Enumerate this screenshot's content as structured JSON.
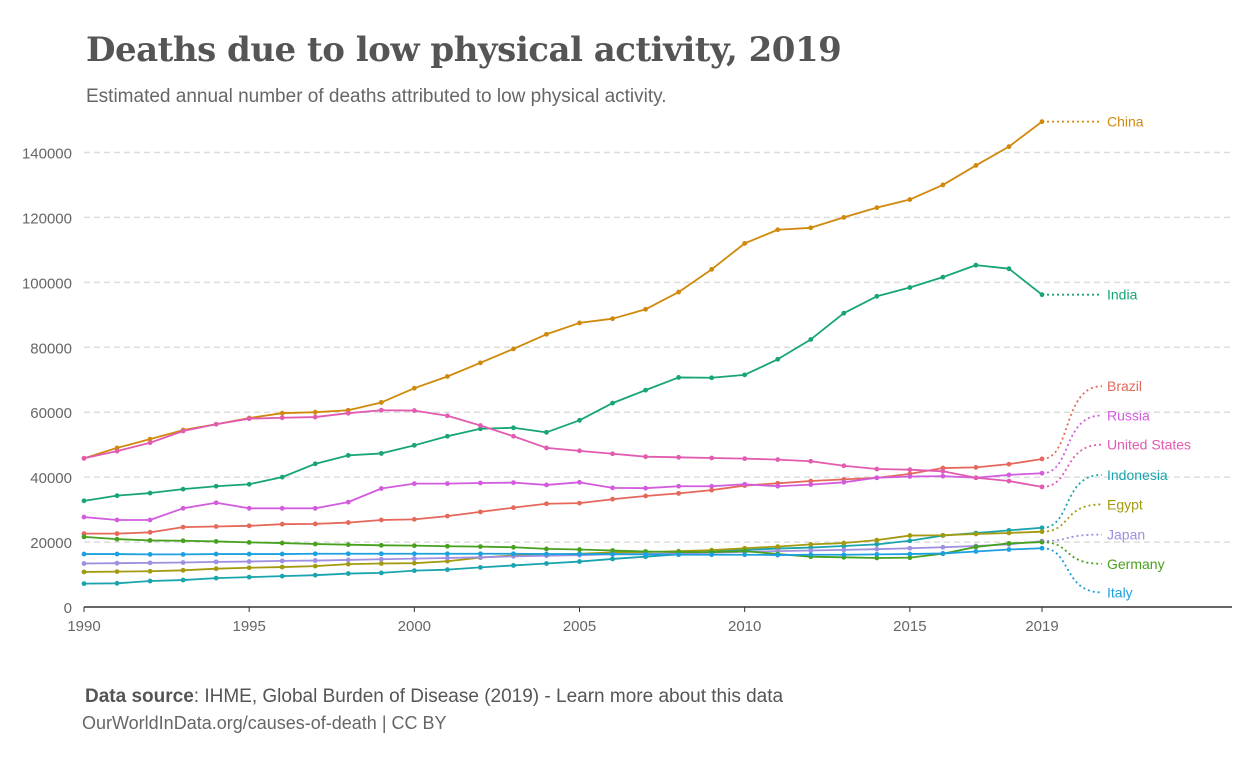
{
  "title": "Deaths due to low physical activity, 2019",
  "subtitle": "Estimated annual number of deaths attributed to low physical activity.",
  "footer": {
    "source_label": "Data source",
    "source_text": ": IHME, Global Burden of Disease (2019) - ",
    "source_link": "Learn more about this data",
    "url_text": "OurWorldInData.org/causes-of-death | CC BY"
  },
  "chart_data": {
    "type": "line",
    "title": "Deaths due to low physical activity, 2019",
    "subtitle": "Estimated annual number of deaths attributed to low physical activity.",
    "xlim": [
      1990,
      2019
    ],
    "ylim": [
      0,
      150000
    ],
    "x_ticks": [
      1990,
      1995,
      2000,
      2005,
      2010,
      2015,
      2019
    ],
    "y_ticks": [
      0,
      20000,
      40000,
      60000,
      80000,
      100000,
      120000,
      140000
    ],
    "grid": "horizontal dashed",
    "legend": "labels at end of lines (right)",
    "x": [
      1990,
      1991,
      1992,
      1993,
      1994,
      1995,
      1996,
      1997,
      1998,
      1999,
      2000,
      2001,
      2002,
      2003,
      2004,
      2005,
      2006,
      2007,
      2008,
      2009,
      2010,
      2011,
      2012,
      2013,
      2014,
      2015,
      2016,
      2017,
      2018,
      2019
    ],
    "series": [
      {
        "name": "China",
        "color": "#d0890a",
        "values": [
          45800,
          49000,
          51700,
          54500,
          56300,
          58200,
          59700,
          60000,
          60600,
          63000,
          67400,
          71000,
          75200,
          79500,
          84000,
          87500,
          88800,
          91700,
          97000,
          104000,
          112000,
          116200,
          116800,
          120000,
          123000,
          125500,
          130000,
          136000,
          141800,
          149500
        ]
      },
      {
        "name": "India",
        "color": "#17a577",
        "values": [
          32700,
          34300,
          35100,
          36300,
          37200,
          37800,
          40000,
          44100,
          46700,
          47300,
          49800,
          52600,
          54900,
          55200,
          53800,
          57500,
          62800,
          66800,
          70700,
          70600,
          71500,
          76300,
          82400,
          90500,
          95700,
          98400,
          101600,
          105300,
          104200,
          96200
        ]
      },
      {
        "name": "Brazil",
        "color": "#e5685b",
        "values": [
          22600,
          22600,
          23000,
          24600,
          24800,
          25000,
          25500,
          25600,
          26000,
          26800,
          27000,
          28000,
          29300,
          30600,
          31800,
          32000,
          33200,
          34200,
          35000,
          36000,
          37400,
          38100,
          38800,
          39300,
          39800,
          41000,
          42800,
          43000,
          44000,
          45600
        ]
      },
      {
        "name": "Russia",
        "color": "#d35cde",
        "values": [
          27700,
          26800,
          26800,
          30400,
          32100,
          30400,
          30400,
          30400,
          32300,
          36500,
          38000,
          38000,
          38200,
          38300,
          37600,
          38400,
          36700,
          36600,
          37200,
          37200,
          37800,
          37200,
          37700,
          38400,
          39800,
          40200,
          40300,
          39800,
          40700,
          41200
        ]
      },
      {
        "name": "United States",
        "color": "#e25bb1",
        "values": [
          45800,
          48000,
          50600,
          54200,
          56300,
          58000,
          58300,
          58500,
          59700,
          60600,
          60500,
          58900,
          55900,
          52600,
          49000,
          48100,
          47200,
          46300,
          46100,
          45900,
          45700,
          45400,
          44900,
          43500,
          42500,
          42300,
          41800,
          39800,
          38800,
          37000
        ]
      },
      {
        "name": "Indonesia",
        "color": "#1aa4ad",
        "values": [
          7200,
          7300,
          8000,
          8300,
          8900,
          9200,
          9500,
          9800,
          10300,
          10500,
          11200,
          11500,
          12200,
          12800,
          13400,
          14000,
          14800,
          15500,
          16200,
          17000,
          17600,
          18000,
          18300,
          18800,
          19300,
          20400,
          22000,
          22800,
          23600,
          24400
        ]
      },
      {
        "name": "Egypt",
        "color": "#a39a10",
        "values": [
          10800,
          10900,
          11000,
          11300,
          11800,
          12100,
          12300,
          12600,
          13200,
          13400,
          13500,
          14100,
          15200,
          15900,
          16100,
          16400,
          16800,
          16900,
          17200,
          17500,
          18100,
          18600,
          19300,
          19700,
          20600,
          22000,
          22100,
          22500,
          22800,
          23200
        ]
      },
      {
        "name": "Japan",
        "color": "#9e8fe0",
        "values": [
          13400,
          13500,
          13600,
          13700,
          13900,
          14000,
          14200,
          14300,
          14500,
          14700,
          14900,
          15100,
          15300,
          15600,
          15800,
          16000,
          16200,
          16300,
          16500,
          16700,
          17000,
          17200,
          17400,
          17600,
          17800,
          18100,
          18400,
          18800,
          19300,
          20300
        ]
      },
      {
        "name": "Germany",
        "color": "#48a11e",
        "values": [
          21600,
          20900,
          20500,
          20400,
          20200,
          19900,
          19700,
          19400,
          19200,
          19000,
          18900,
          18700,
          18600,
          18400,
          17900,
          17700,
          17400,
          17100,
          16900,
          16900,
          17200,
          16300,
          15500,
          15300,
          15100,
          15200,
          16400,
          18500,
          19600,
          20000
        ]
      },
      {
        "name": "Italy",
        "color": "#1ca0e0",
        "values": [
          16300,
          16300,
          16200,
          16200,
          16300,
          16300,
          16300,
          16400,
          16400,
          16400,
          16400,
          16400,
          16400,
          16400,
          16300,
          16300,
          16300,
          16200,
          16100,
          16100,
          16100,
          16000,
          16100,
          16100,
          16200,
          16300,
          16500,
          17100,
          17700,
          18100
        ]
      }
    ],
    "end_labels": [
      {
        "name": "China",
        "label_value": 149500
      },
      {
        "name": "India",
        "label_value": 96200
      },
      {
        "name": "Brazil",
        "label_value": 68000
      },
      {
        "name": "Russia",
        "label_value": 59000
      },
      {
        "name": "United States",
        "label_value": 50000
      },
      {
        "name": "Indonesia",
        "label_value": 40700
      },
      {
        "name": "Egypt",
        "label_value": 31600
      },
      {
        "name": "Japan",
        "label_value": 22300
      },
      {
        "name": "Germany",
        "label_value": 13300
      },
      {
        "name": "Italy",
        "label_value": 4500
      }
    ]
  }
}
